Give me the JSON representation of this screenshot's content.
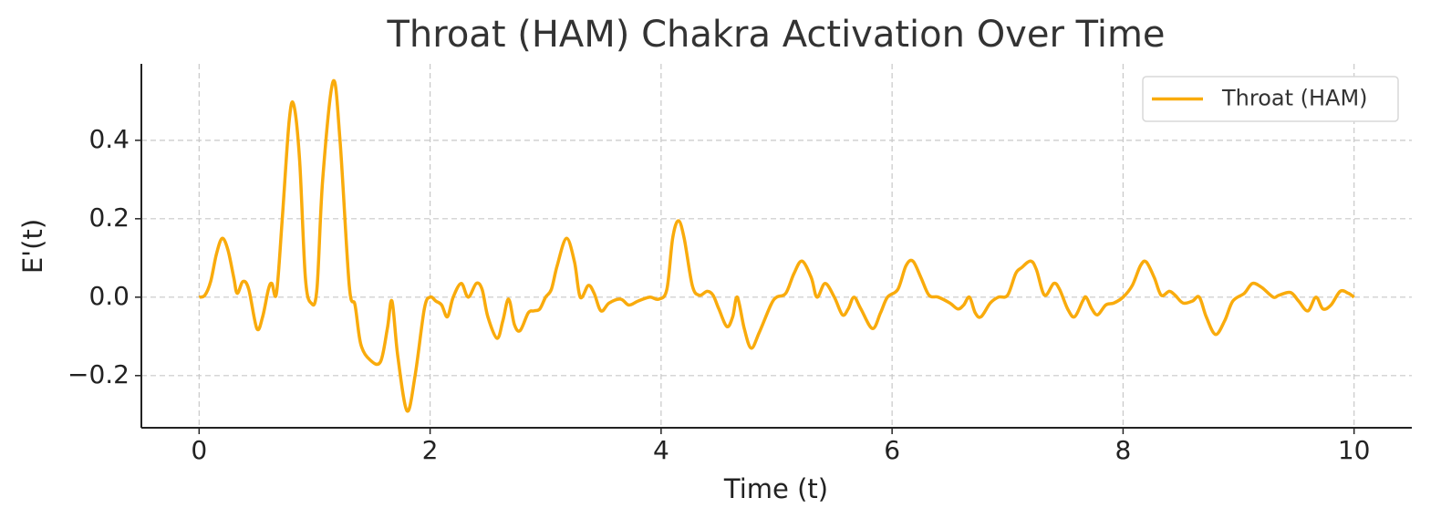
{
  "chart_data": {
    "type": "line",
    "title": "Throat (HAM) Chakra Activation Over Time",
    "x_label": "Time (t)",
    "y_label": "E'(t)",
    "xlim": [
      -0.5,
      10.5
    ],
    "ylim": [
      -0.333,
      0.595
    ],
    "xticks": [
      0,
      2,
      4,
      6,
      8,
      10
    ],
    "yticks": [
      {
        "value": -0.2,
        "label": "−0.2"
      },
      {
        "value": 0,
        "label": "0.0"
      },
      {
        "value": 0.2,
        "label": "0.2"
      },
      {
        "value": 0.4,
        "label": "0.4"
      }
    ],
    "grid": true,
    "legend": "upper right",
    "x": [
      0,
      0.05,
      0.1,
      0.15,
      0.2,
      0.25,
      0.3,
      0.33,
      0.38,
      0.43,
      0.5,
      0.55,
      0.6,
      0.63,
      0.67,
      0.72,
      0.78,
      0.82,
      0.87,
      0.92,
      0.97,
      1.02,
      1.07,
      1.16,
      1.22,
      1.3,
      1.35,
      1.4,
      1.48,
      1.57,
      1.63,
      1.67,
      1.72,
      1.8,
      1.87,
      1.95,
      2.0,
      2.05,
      2.1,
      2.15,
      2.2,
      2.27,
      2.33,
      2.4,
      2.45,
      2.5,
      2.58,
      2.63,
      2.68,
      2.73,
      2.78,
      2.85,
      2.9,
      2.95,
      3.0,
      3.05,
      3.1,
      3.18,
      3.25,
      3.3,
      3.37,
      3.42,
      3.48,
      3.55,
      3.65,
      3.72,
      3.8,
      3.9,
      3.98,
      4.05,
      4.1,
      4.15,
      4.2,
      4.27,
      4.33,
      4.4,
      4.45,
      4.5,
      4.57,
      4.62,
      4.66,
      4.72,
      4.78,
      4.85,
      4.95,
      5.0,
      5.08,
      5.15,
      5.22,
      5.3,
      5.35,
      5.42,
      5.5,
      5.57,
      5.62,
      5.67,
      5.73,
      5.83,
      5.9,
      5.96,
      6.05,
      6.12,
      6.18,
      6.25,
      6.32,
      6.4,
      6.5,
      6.57,
      6.62,
      6.67,
      6.72,
      6.77,
      6.85,
      6.92,
      7.0,
      7.07,
      7.12,
      7.2,
      7.25,
      7.32,
      7.4,
      7.45,
      7.52,
      7.58,
      7.65,
      7.68,
      7.73,
      7.78,
      7.85,
      7.92,
      8.0,
      8.08,
      8.15,
      8.2,
      8.27,
      8.33,
      8.4,
      8.45,
      8.52,
      8.6,
      8.66,
      8.72,
      8.8,
      8.88,
      8.95,
      9.05,
      9.12,
      9.2,
      9.3,
      9.35,
      9.45,
      9.52,
      9.6,
      9.67,
      9.73,
      9.8,
      9.88,
      9.95,
      10.0
    ],
    "series": [
      {
        "name": "Throat (HAM)",
        "color": "#f9ab0c",
        "values": [
          0,
          0.005,
          0.04,
          0.11,
          0.15,
          0.12,
          0.05,
          0.01,
          0.04,
          0.02,
          -0.08,
          -0.05,
          0.02,
          0.035,
          0.01,
          0.2,
          0.45,
          0.49,
          0.35,
          0.05,
          -0.015,
          0.02,
          0.3,
          0.55,
          0.4,
          0.03,
          -0.02,
          -0.12,
          -0.16,
          -0.165,
          -0.08,
          -0.01,
          -0.15,
          -0.29,
          -0.2,
          -0.03,
          0.0,
          -0.01,
          -0.02,
          -0.05,
          0.0,
          0.035,
          0.0,
          0.035,
          0.02,
          -0.05,
          -0.105,
          -0.06,
          -0.005,
          -0.07,
          -0.085,
          -0.04,
          -0.035,
          -0.03,
          0.0,
          0.02,
          0.08,
          0.15,
          0.09,
          0.0,
          0.03,
          0.01,
          -0.035,
          -0.015,
          -0.005,
          -0.02,
          -0.01,
          0.0,
          -0.005,
          0.02,
          0.15,
          0.195,
          0.15,
          0.03,
          0.005,
          0.015,
          0.005,
          -0.03,
          -0.075,
          -0.05,
          0.0,
          -0.08,
          -0.13,
          -0.09,
          -0.02,
          0.0,
          0.01,
          0.06,
          0.092,
          0.05,
          0.0,
          0.035,
          0.0,
          -0.045,
          -0.03,
          0.0,
          -0.03,
          -0.08,
          -0.04,
          0.0,
          0.02,
          0.08,
          0.092,
          0.05,
          0.005,
          0.0,
          -0.015,
          -0.03,
          -0.02,
          0.0,
          -0.04,
          -0.05,
          -0.015,
          0.0,
          0.005,
          0.06,
          0.075,
          0.092,
          0.07,
          0.005,
          0.035,
          0.02,
          -0.03,
          -0.05,
          -0.01,
          0.0,
          -0.03,
          -0.045,
          -0.02,
          -0.015,
          0.0,
          0.03,
          0.08,
          0.09,
          0.05,
          0.005,
          0.015,
          0.005,
          -0.015,
          -0.01,
          0.0,
          -0.05,
          -0.095,
          -0.06,
          -0.01,
          0.01,
          0.035,
          0.025,
          0.0,
          0.005,
          0.012,
          -0.01,
          -0.035,
          0.0,
          -0.03,
          -0.02,
          0.015,
          0.01,
          0.0
        ]
      }
    ]
  }
}
